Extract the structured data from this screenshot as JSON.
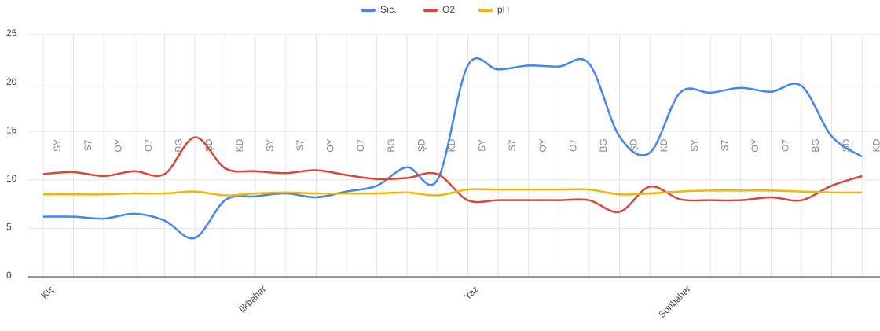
{
  "chart_data": {
    "type": "line",
    "categories": [
      "Kış",
      null,
      null,
      null,
      null,
      null,
      null,
      "İlkbahar",
      null,
      null,
      null,
      null,
      null,
      null,
      "Yaz",
      null,
      null,
      null,
      null,
      null,
      null,
      "Sonbahar",
      null,
      null,
      null,
      null,
      null,
      null
    ],
    "annotations": [
      "SY",
      "S7",
      "OY",
      "O7",
      "BG",
      "ŞD",
      "KD",
      "SY",
      "S7",
      "OY",
      "O7",
      "BG",
      "ŞD",
      "KD",
      "SY",
      "S7",
      "OY",
      "O7",
      "BG",
      "ŞD",
      "KD",
      "SY",
      "S7",
      "OY",
      "O7",
      "BG",
      "ŞD",
      "KD"
    ],
    "series": [
      {
        "name": "Sıc.",
        "color": "#4285f4",
        "values": [
          6.2,
          6.2,
          6.0,
          6.5,
          5.8,
          4.0,
          7.9,
          8.3,
          8.6,
          8.2,
          8.8,
          9.4,
          11.3,
          10.0,
          21.8,
          21.4,
          21.8,
          21.7,
          22.0,
          14.5,
          12.8,
          19.0,
          19.0,
          19.5,
          19.1,
          19.7,
          14.5,
          12.4
        ]
      },
      {
        "name": "O2",
        "color": "#db4437",
        "values": [
          10.6,
          10.8,
          10.4,
          10.9,
          10.6,
          14.4,
          11.2,
          10.9,
          10.7,
          11.0,
          10.5,
          10.1,
          10.2,
          10.6,
          7.9,
          7.9,
          7.9,
          7.9,
          7.9,
          6.7,
          9.3,
          8.0,
          7.9,
          7.9,
          8.2,
          7.9,
          9.4,
          10.4
        ]
      },
      {
        "name": "pH",
        "color": "#f4b400",
        "values": [
          8.5,
          8.5,
          8.5,
          8.6,
          8.6,
          8.8,
          8.4,
          8.6,
          8.7,
          8.6,
          8.6,
          8.6,
          8.7,
          8.4,
          9.0,
          9.0,
          9.0,
          9.0,
          9.0,
          8.5,
          8.6,
          8.8,
          8.9,
          8.9,
          8.9,
          8.8,
          8.7,
          8.7
        ]
      }
    ],
    "ylim": [
      0,
      25
    ],
    "yticks": [
      0,
      5,
      10,
      15,
      20,
      25
    ],
    "grid": true,
    "legend": "top"
  }
}
